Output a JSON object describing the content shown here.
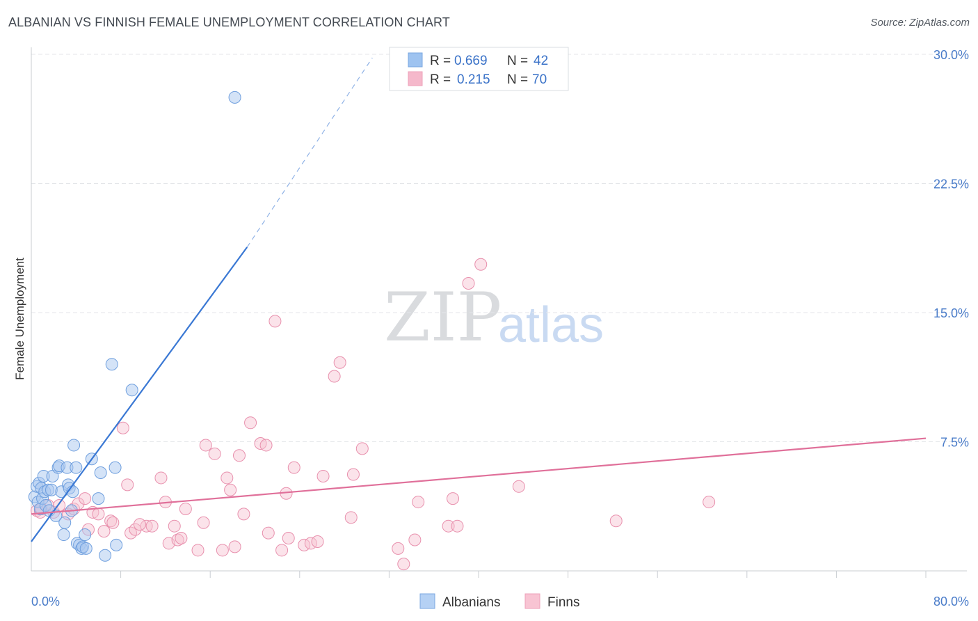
{
  "title": "ALBANIAN VS FINNISH FEMALE UNEMPLOYMENT CORRELATION CHART",
  "source": "Source: ZipAtlas.com",
  "watermark": {
    "zip": "ZIP",
    "atlas": "atlas"
  },
  "legend_top": [
    {
      "r_label": "R =",
      "r_value": "0.669",
      "n_label": "N =",
      "n_value": "42",
      "color": "#9ec3f0"
    },
    {
      "r_label": "R =",
      "r_value": "0.215",
      "n_label": "N =",
      "n_value": "70",
      "color": "#f5b8cb"
    }
  ],
  "legend_bottom": [
    {
      "label": "Albanians",
      "color": "#b5d1f4"
    },
    {
      "label": "Finns",
      "color": "#f8c4d3"
    }
  ],
  "colors": {
    "blue": "#3a78d4",
    "pink": "#e0709a",
    "blue_fill": "#a9c8f0",
    "pink_fill": "#f7c0d0"
  },
  "chart_data": {
    "type": "scatter",
    "title": "ALBANIAN VS FINNISH FEMALE UNEMPLOYMENT CORRELATION CHART",
    "xlabel": "",
    "ylabel": "Female Unemployment",
    "xlim": [
      0,
      80
    ],
    "ylim": [
      0,
      30
    ],
    "x_tick_labels": [
      "0.0%",
      "80.0%"
    ],
    "y_ticks": [
      7.5,
      15.0,
      22.5,
      30.0
    ],
    "y_tick_labels": [
      "7.5%",
      "15.0%",
      "22.5%",
      "30.0%"
    ],
    "grid": true,
    "legend": "top-center",
    "series": [
      {
        "name": "Albanians",
        "r": 0.669,
        "n": 42,
        "trend": {
          "x0": 0,
          "y0": 1.7,
          "x1": 19.3,
          "y1": 18.8,
          "dash_to_x": 30.5,
          "dash_to_y": 29.8
        },
        "points": [
          [
            0.3,
            4.3
          ],
          [
            0.5,
            4.9
          ],
          [
            0.6,
            4.0
          ],
          [
            0.7,
            5.1
          ],
          [
            0.8,
            3.6
          ],
          [
            0.9,
            4.8
          ],
          [
            1.0,
            4.2
          ],
          [
            1.1,
            5.5
          ],
          [
            1.2,
            4.6
          ],
          [
            1.3,
            3.8
          ],
          [
            1.5,
            4.7
          ],
          [
            1.6,
            3.5
          ],
          [
            1.8,
            4.7
          ],
          [
            1.9,
            5.5
          ],
          [
            2.2,
            3.2
          ],
          [
            2.4,
            6.0
          ],
          [
            2.5,
            6.1
          ],
          [
            2.7,
            4.6
          ],
          [
            2.9,
            2.1
          ],
          [
            3.0,
            2.8
          ],
          [
            3.2,
            6.0
          ],
          [
            3.3,
            5.0
          ],
          [
            3.4,
            4.8
          ],
          [
            3.6,
            3.5
          ],
          [
            3.8,
            7.3
          ],
          [
            4.0,
            6.0
          ],
          [
            4.1,
            1.6
          ],
          [
            4.3,
            1.5
          ],
          [
            4.5,
            1.3
          ],
          [
            4.6,
            1.4
          ],
          [
            4.8,
            2.1
          ],
          [
            4.9,
            1.3
          ],
          [
            5.4,
            6.5
          ],
          [
            6.0,
            4.2
          ],
          [
            6.2,
            5.7
          ],
          [
            6.6,
            0.9
          ],
          [
            7.5,
            6.0
          ],
          [
            7.6,
            1.5
          ],
          [
            7.2,
            12.0
          ],
          [
            9.0,
            10.5
          ],
          [
            18.2,
            27.5
          ],
          [
            3.7,
            4.6
          ]
        ]
      },
      {
        "name": "Finns",
        "r": 0.215,
        "n": 70,
        "trend": {
          "x0": 0,
          "y0": 3.3,
          "x1": 80,
          "y1": 7.7
        },
        "points": [
          [
            0.5,
            3.5
          ],
          [
            0.8,
            3.4
          ],
          [
            1.5,
            3.8
          ],
          [
            2.0,
            3.4
          ],
          [
            2.5,
            3.8
          ],
          [
            3.3,
            3.3
          ],
          [
            3.8,
            3.6
          ],
          [
            4.2,
            3.9
          ],
          [
            4.8,
            4.2
          ],
          [
            5.1,
            2.4
          ],
          [
            5.5,
            3.4
          ],
          [
            6.0,
            3.3
          ],
          [
            6.5,
            2.3
          ],
          [
            7.1,
            2.9
          ],
          [
            7.3,
            2.8
          ],
          [
            8.2,
            8.3
          ],
          [
            8.6,
            5.0
          ],
          [
            8.9,
            2.2
          ],
          [
            9.3,
            2.4
          ],
          [
            10.3,
            2.6
          ],
          [
            10.8,
            2.6
          ],
          [
            11.6,
            5.4
          ],
          [
            12.0,
            4.0
          ],
          [
            12.3,
            1.6
          ],
          [
            12.8,
            2.6
          ],
          [
            13.1,
            1.8
          ],
          [
            13.4,
            1.9
          ],
          [
            13.8,
            3.6
          ],
          [
            14.9,
            1.2
          ],
          [
            15.4,
            2.8
          ],
          [
            15.6,
            7.3
          ],
          [
            16.4,
            6.8
          ],
          [
            17.1,
            1.2
          ],
          [
            17.5,
            5.4
          ],
          [
            17.8,
            4.7
          ],
          [
            18.2,
            1.4
          ],
          [
            18.6,
            6.7
          ],
          [
            19.0,
            3.3
          ],
          [
            19.6,
            8.6
          ],
          [
            20.5,
            7.4
          ],
          [
            21.0,
            7.3
          ],
          [
            21.2,
            2.2
          ],
          [
            21.8,
            14.5
          ],
          [
            22.4,
            1.2
          ],
          [
            22.8,
            4.5
          ],
          [
            23.0,
            1.9
          ],
          [
            23.5,
            6.0
          ],
          [
            24.4,
            1.5
          ],
          [
            25.0,
            1.6
          ],
          [
            25.6,
            1.7
          ],
          [
            26.1,
            5.5
          ],
          [
            27.1,
            11.3
          ],
          [
            27.6,
            12.1
          ],
          [
            28.6,
            3.1
          ],
          [
            28.8,
            5.6
          ],
          [
            29.6,
            7.1
          ],
          [
            32.8,
            1.3
          ],
          [
            33.3,
            0.4
          ],
          [
            34.3,
            1.8
          ],
          [
            34.6,
            4.0
          ],
          [
            37.3,
            2.6
          ],
          [
            37.7,
            4.2
          ],
          [
            38.1,
            2.6
          ],
          [
            39.1,
            16.7
          ],
          [
            40.2,
            17.8
          ],
          [
            43.6,
            4.9
          ],
          [
            52.3,
            2.9
          ],
          [
            60.6,
            4.0
          ],
          [
            0.9,
            3.6
          ],
          [
            9.7,
            2.7
          ]
        ]
      }
    ]
  }
}
